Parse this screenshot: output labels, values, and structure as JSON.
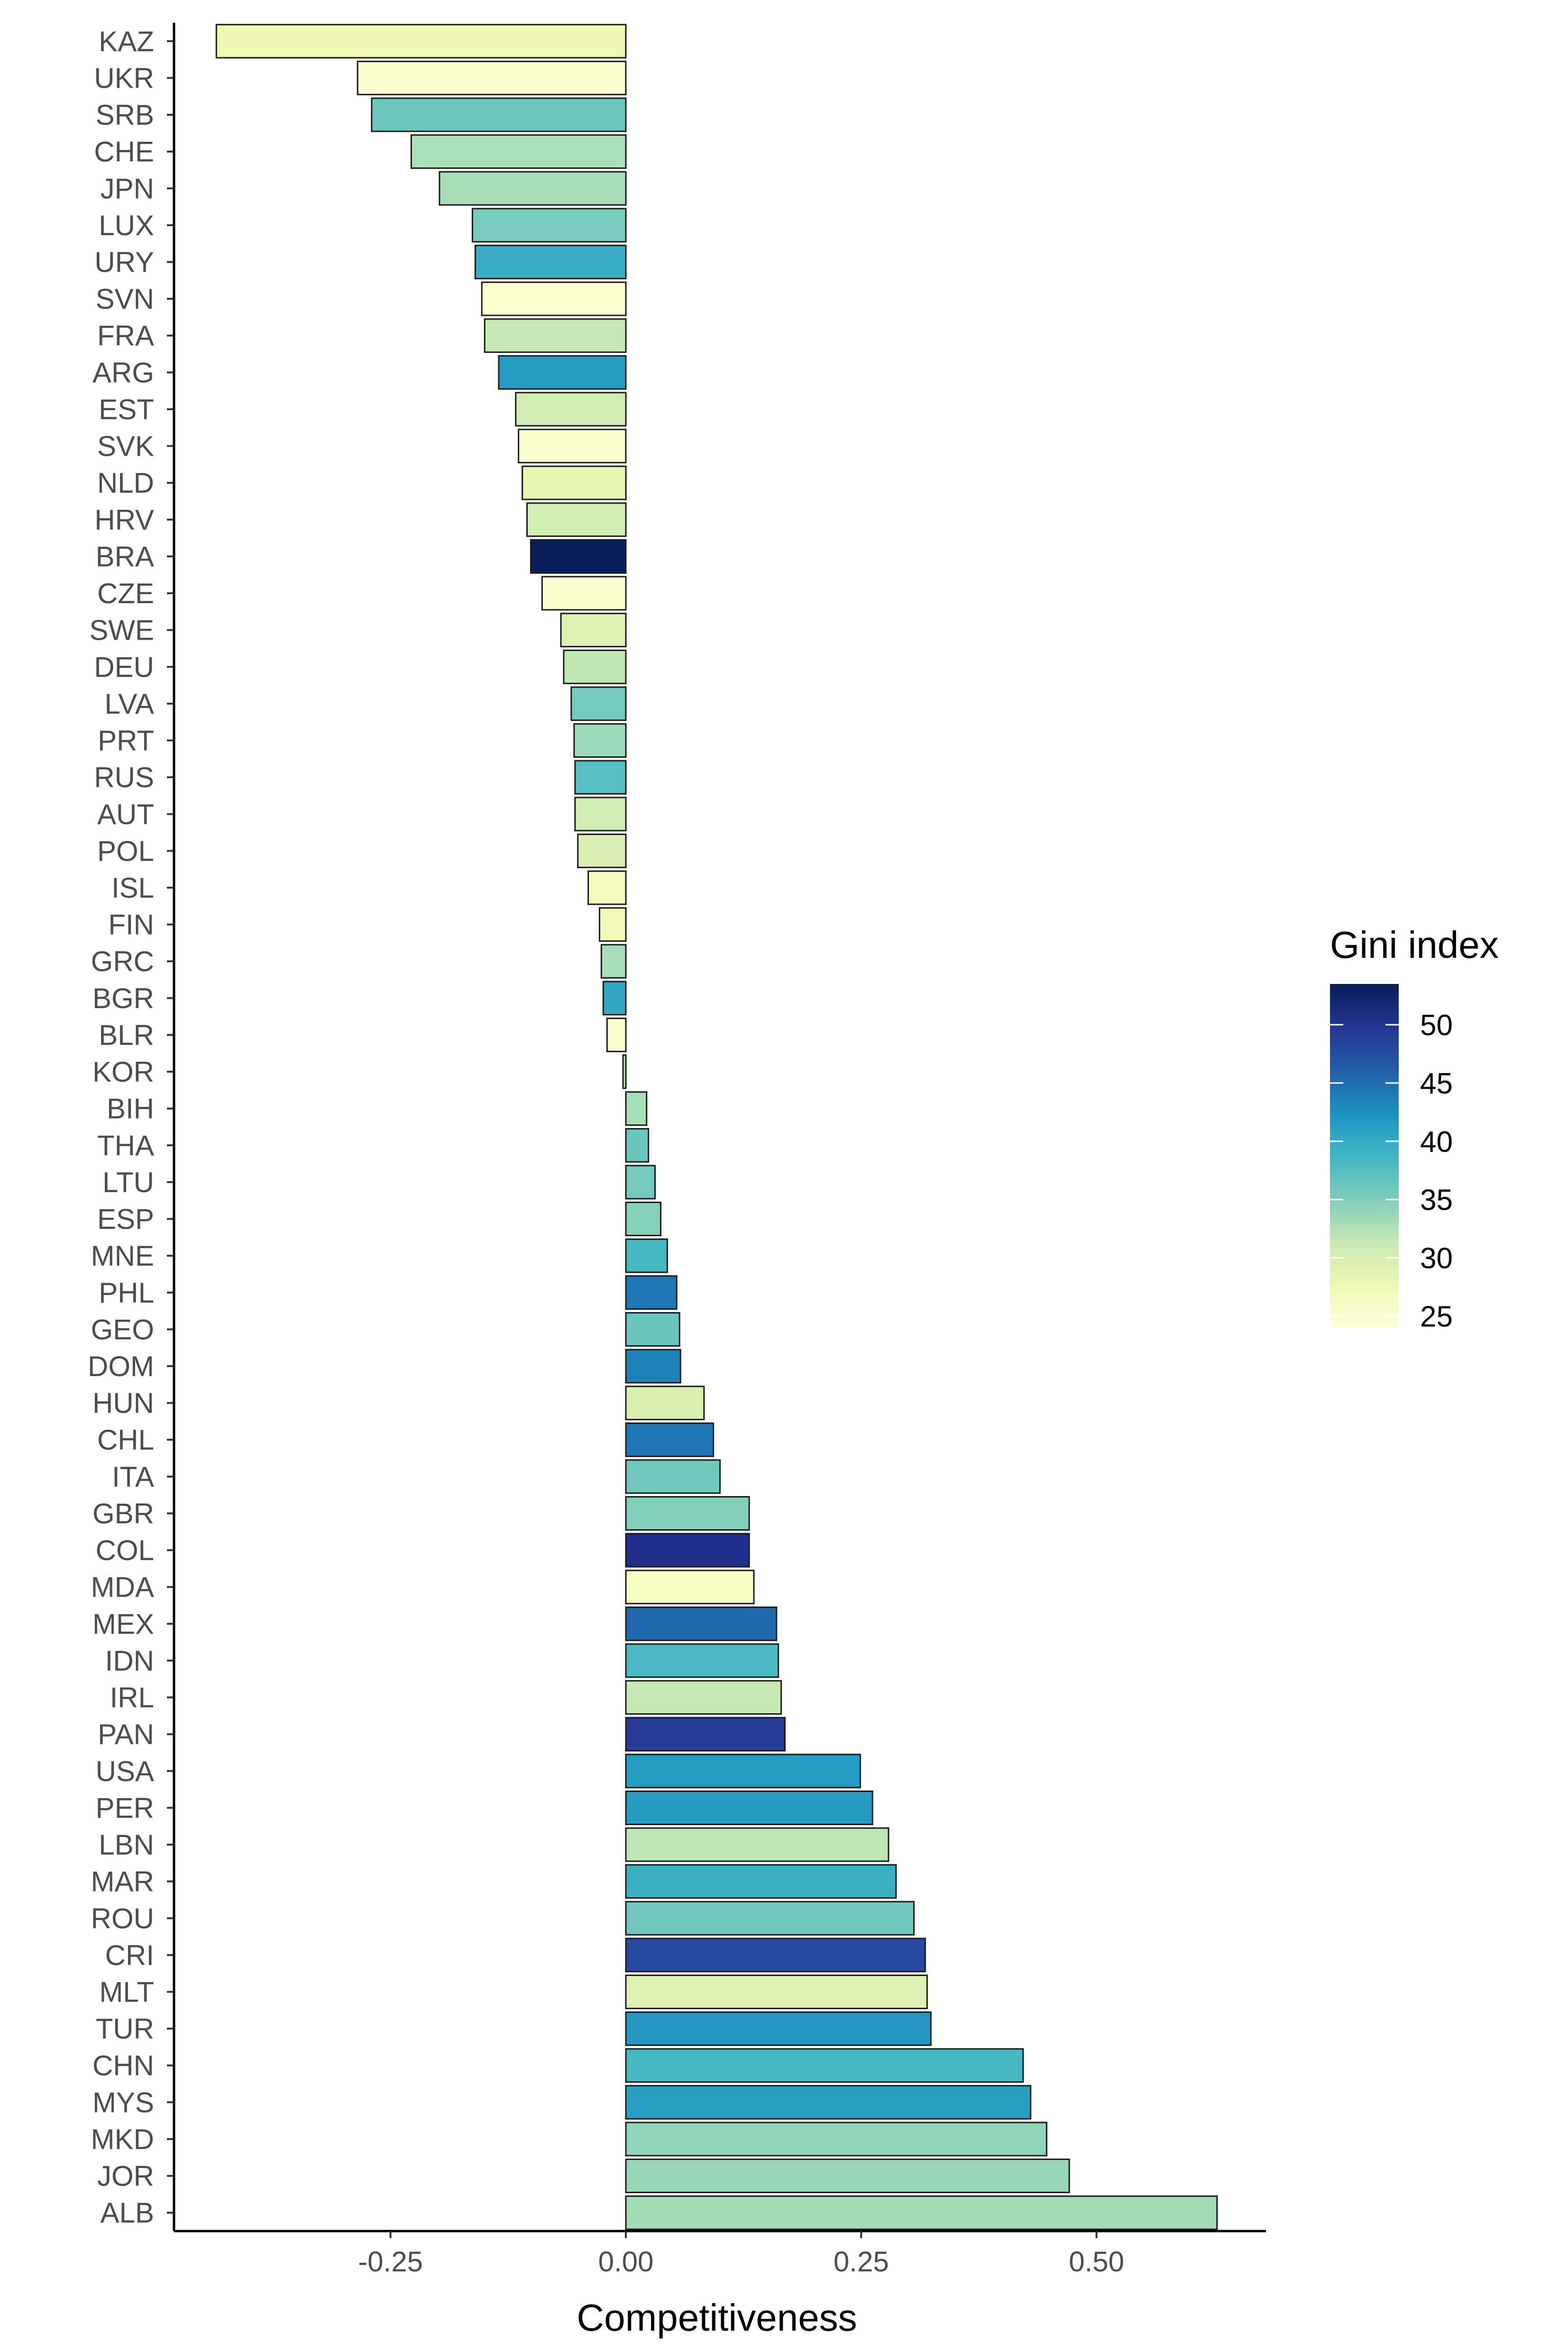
{
  "chart_data": {
    "type": "bar",
    "orientation": "horizontal",
    "title": "",
    "xlabel": "Competitiveness",
    "ylabel": "",
    "xlim": [
      -0.48,
      0.68
    ],
    "x_ticks": [
      {
        "value": -0.25,
        "label": "-0.25"
      },
      {
        "value": 0.0,
        "label": "0.00"
      },
      {
        "value": 0.25,
        "label": "0.25"
      },
      {
        "value": 0.5,
        "label": "0.50"
      }
    ],
    "grid": false,
    "legend": {
      "title": "Gini index",
      "placement": "right",
      "type": "colorbar",
      "range": [
        24,
        53.5
      ],
      "ticks": [
        {
          "value": 50,
          "label": "50"
        },
        {
          "value": 45,
          "label": "45"
        },
        {
          "value": 40,
          "label": "40"
        },
        {
          "value": 35,
          "label": "35"
        },
        {
          "value": 30,
          "label": "30"
        },
        {
          "value": 25,
          "label": "25"
        }
      ],
      "palette": "YlGnBu",
      "color_stops": [
        "#ffffd9",
        "#edf8b1",
        "#c7e9b4",
        "#7fcdbb",
        "#41b6c4",
        "#1d91c0",
        "#225ea8",
        "#253494",
        "#081d58"
      ]
    },
    "categories": [
      "KAZ",
      "UKR",
      "SRB",
      "CHE",
      "JPN",
      "LUX",
      "URY",
      "SVN",
      "FRA",
      "ARG",
      "EST",
      "SVK",
      "NLD",
      "HRV",
      "BRA",
      "CZE",
      "SWE",
      "DEU",
      "LVA",
      "PRT",
      "RUS",
      "AUT",
      "POL",
      "ISL",
      "FIN",
      "GRC",
      "BGR",
      "BLR",
      "KOR",
      "BIH",
      "THA",
      "LTU",
      "ESP",
      "MNE",
      "PHL",
      "GEO",
      "DOM",
      "HUN",
      "CHL",
      "ITA",
      "GBR",
      "COL",
      "MDA",
      "MEX",
      "IDN",
      "IRL",
      "PAN",
      "USA",
      "PER",
      "LBN",
      "MAR",
      "ROU",
      "CRI",
      "MLT",
      "TUR",
      "CHN",
      "MYS",
      "MKD",
      "JOR",
      "ALB"
    ],
    "series": [
      {
        "values": [
          -0.435,
          -0.285,
          -0.27,
          -0.228,
          -0.198,
          -0.163,
          -0.16,
          -0.153,
          -0.15,
          -0.135,
          -0.117,
          -0.114,
          -0.11,
          -0.105,
          -0.101,
          -0.089,
          -0.069,
          -0.066,
          -0.058,
          -0.055,
          -0.054,
          -0.054,
          -0.051,
          -0.04,
          -0.028,
          -0.026,
          -0.024,
          -0.02,
          -0.003,
          0.022,
          0.024,
          0.031,
          0.037,
          0.044,
          0.054,
          0.057,
          0.058,
          0.083,
          0.093,
          0.1,
          0.131,
          0.131,
          0.136,
          0.16,
          0.162,
          0.165,
          0.169,
          0.249,
          0.262,
          0.279,
          0.287,
          0.306,
          0.318,
          0.32,
          0.324,
          0.422,
          0.43,
          0.447,
          0.471,
          0.628
        ],
        "gini": [
          27.5,
          25.0,
          36.2,
          32.7,
          32.9,
          35.4,
          39.7,
          24.6,
          31.5,
          41.4,
          30.4,
          25.0,
          28.1,
          30.4,
          53.4,
          25.0,
          29.3,
          31.7,
          35.6,
          33.5,
          37.5,
          30.5,
          29.7,
          26.8,
          27.1,
          32.9,
          40.3,
          25.3,
          31.4,
          33.0,
          36.4,
          35.7,
          34.7,
          38.5,
          44.4,
          36.4,
          43.7,
          29.6,
          44.4,
          35.9,
          34.8,
          50.4,
          25.9,
          45.4,
          38.2,
          31.4,
          49.2,
          41.4,
          41.5,
          31.8,
          39.5,
          35.8,
          48.0,
          29.2,
          41.9,
          38.5,
          41.1,
          34.2,
          33.7,
          33.2
        ]
      }
    ]
  }
}
